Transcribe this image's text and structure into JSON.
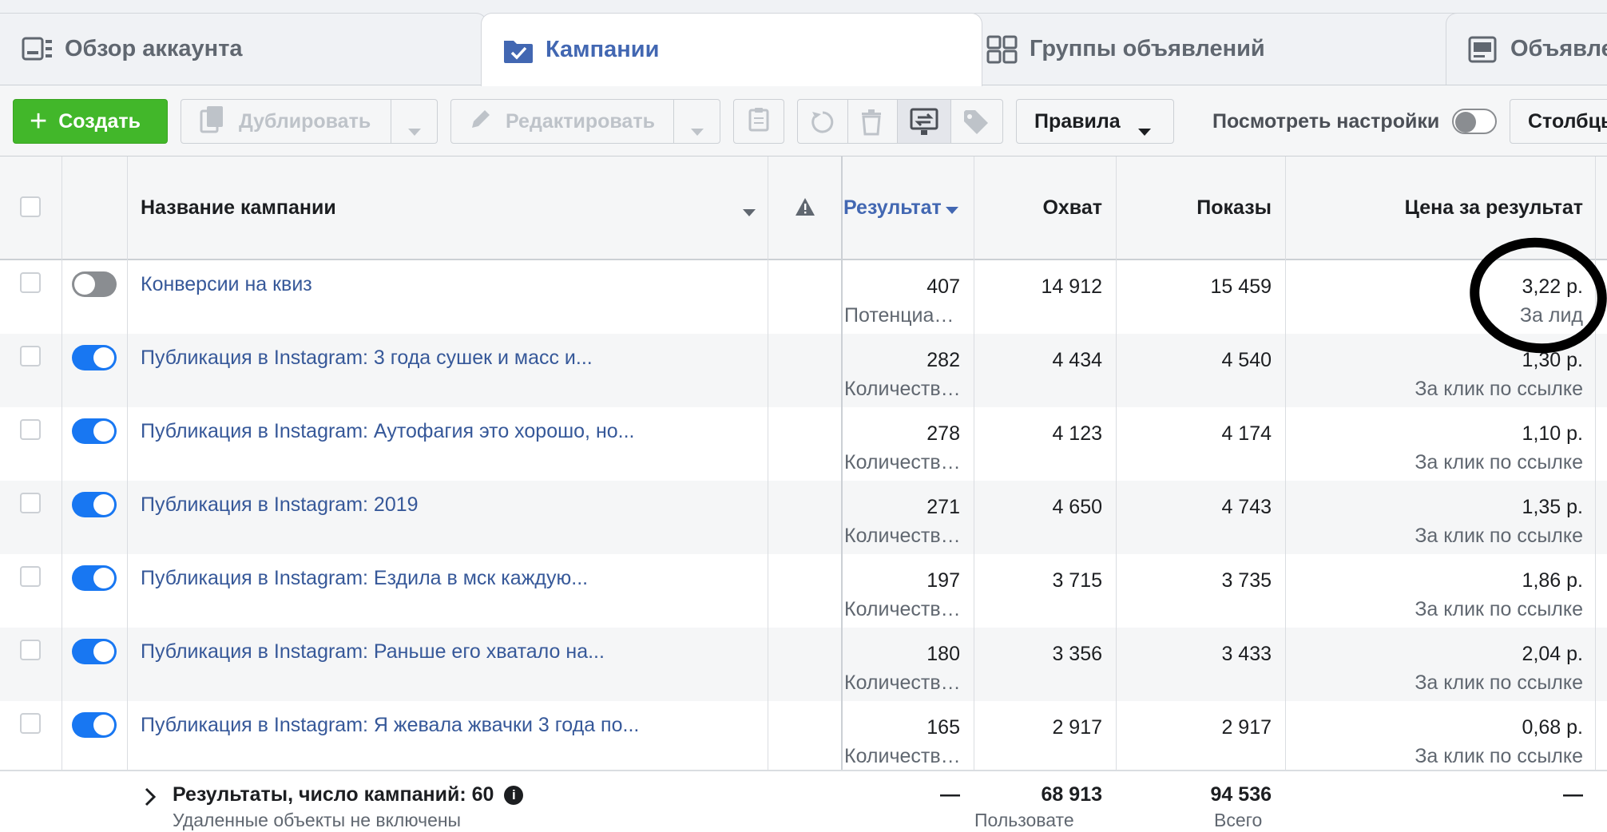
{
  "tabs": [
    {
      "label": "Обзор аккаунта",
      "icon": "dashboard-icon"
    },
    {
      "label": "Кампании",
      "icon": "campaign-folder-icon"
    },
    {
      "label": "Группы объявлений",
      "icon": "grid-icon"
    },
    {
      "label": "Объявле",
      "icon": "ad-icon"
    }
  ],
  "toolbar": {
    "create": "Создать",
    "duplicate": "Дублировать",
    "edit": "Редактировать",
    "rules": "Правила",
    "view_settings": "Посмотреть настройки",
    "columns": "Столбцы"
  },
  "columns": {
    "name": "Название кампании",
    "results": "Результат",
    "reach": "Охват",
    "impressions": "Показы",
    "cost": "Цена за результат"
  },
  "rows": [
    {
      "on": false,
      "name": "Конверсии на квиз",
      "results": "407",
      "results_sub": "Потенциа…",
      "reach": "14 912",
      "impressions": "15 459",
      "cost": "3,22 р.",
      "cost_sub": "За лид"
    },
    {
      "on": true,
      "name": "Публикация в Instagram: 3 года сушек и масс и...",
      "results": "282",
      "results_sub": "Количеств…",
      "reach": "4 434",
      "impressions": "4 540",
      "cost": "1,30 р.",
      "cost_sub": "За клик по ссылке"
    },
    {
      "on": true,
      "name": "Публикация в Instagram: Аутофагия это хорошо, но...",
      "results": "278",
      "results_sub": "Количеств…",
      "reach": "4 123",
      "impressions": "4 174",
      "cost": "1,10 р.",
      "cost_sub": "За клик по ссылке"
    },
    {
      "on": true,
      "name": "Публикация в Instagram: 2019",
      "results": "271",
      "results_sub": "Количеств…",
      "reach": "4 650",
      "impressions": "4 743",
      "cost": "1,35 р.",
      "cost_sub": "За клик по ссылке"
    },
    {
      "on": true,
      "name": "Публикация в Instagram: Ездила в мск каждую...",
      "results": "197",
      "results_sub": "Количеств…",
      "reach": "3 715",
      "impressions": "3 735",
      "cost": "1,86 р.",
      "cost_sub": "За клик по ссылке"
    },
    {
      "on": true,
      "name": "Публикация в Instagram: Раньше его хватало на...",
      "results": "180",
      "results_sub": "Количеств…",
      "reach": "3 356",
      "impressions": "3 433",
      "cost": "2,04 р.",
      "cost_sub": "За клик по ссылке"
    },
    {
      "on": true,
      "name": "Публикация в Instagram: Я жевала жвачки 3 года по...",
      "results": "165",
      "results_sub": "Количеств…",
      "reach": "2 917",
      "impressions": "2 917",
      "cost": "0,68 р.",
      "cost_sub": "За клик по ссылке"
    }
  ],
  "footer": {
    "summary": "Результаты, число кампаний: 60",
    "summary_sub": "Удаленные объекты не включены",
    "results": "—",
    "reach": "68 913",
    "reach_sub": "Пользовате",
    "impressions": "94 536",
    "impressions_sub": "Всего",
    "cost": "—"
  },
  "colors": {
    "accent": "#4267b2",
    "create": "#42b72a",
    "toggle_on": "#1877f2",
    "link": "#365899"
  }
}
